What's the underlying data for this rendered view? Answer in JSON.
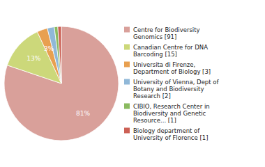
{
  "chart_data": {
    "type": "pie",
    "categories": [
      "Centre for Biodiversity\nGenomics [91]",
      "Canadian Centre for DNA\nBarcoding [15]",
      "Universita di Firenze,\nDepartment of Biology [3]",
      "University of Vienna, Dept of\nBotany and Biodiversity\nResearch [2]",
      "CIBIO, Research Center in\nBiodiversity and Genetic\nResource... [1]",
      "Biology department of\nUniversity of Florence [1]"
    ],
    "values": [
      81,
      13,
      3,
      2,
      1,
      1
    ],
    "value_labels": [
      "81%",
      "13%",
      "3%",
      null,
      null,
      null
    ],
    "colors": [
      "#d9a09a",
      "#ccd87a",
      "#e8a050",
      "#90b8d8",
      "#8aba60",
      "#cc6055"
    ],
    "data_labels": true,
    "legend": "right"
  }
}
